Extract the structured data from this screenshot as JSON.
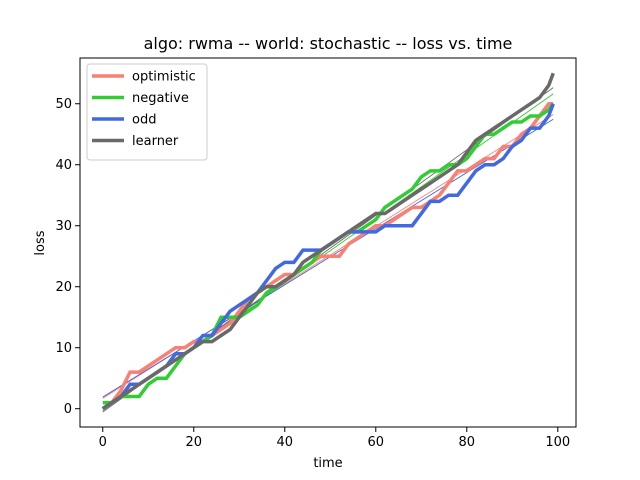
{
  "chart_data": {
    "type": "line",
    "title": "algo: rwma -- world: stochastic -- loss vs. time",
    "xlabel": "time",
    "ylabel": "loss",
    "xlim": [
      -5,
      104
    ],
    "ylim": [
      -3,
      57.5
    ],
    "xticks": [
      0,
      20,
      40,
      60,
      80,
      100
    ],
    "yticks": [
      0,
      10,
      20,
      30,
      40,
      50
    ],
    "grid": false,
    "legend_position": "top-left",
    "series": [
      {
        "name": "optimistic",
        "color": "#fa8072",
        "x": [
          0,
          2,
          4,
          6,
          8,
          10,
          12,
          14,
          16,
          18,
          20,
          22,
          24,
          26,
          28,
          30,
          32,
          34,
          36,
          38,
          40,
          42,
          44,
          46,
          48,
          50,
          52,
          54,
          56,
          58,
          60,
          62,
          64,
          66,
          68,
          70,
          72,
          74,
          76,
          78,
          80,
          82,
          84,
          86,
          88,
          90,
          92,
          94,
          96,
          98,
          99
        ],
        "values": [
          0,
          1,
          3,
          6,
          6,
          7,
          8,
          9,
          10,
          10,
          11,
          11,
          12,
          13,
          14,
          16,
          18,
          19,
          20,
          21,
          22,
          22,
          23,
          24,
          25,
          25,
          25,
          27,
          28,
          29,
          30,
          30,
          31,
          32,
          33,
          33,
          34,
          35,
          37,
          39,
          39,
          40,
          41,
          41,
          43,
          43,
          45,
          46,
          48,
          50,
          50
        ]
      },
      {
        "name": "negative",
        "color": "#32cd32",
        "x": [
          0,
          2,
          4,
          6,
          8,
          10,
          12,
          14,
          16,
          18,
          20,
          22,
          24,
          26,
          28,
          30,
          32,
          34,
          36,
          38,
          40,
          42,
          44,
          46,
          48,
          50,
          52,
          54,
          56,
          58,
          60,
          62,
          64,
          66,
          68,
          70,
          72,
          74,
          76,
          78,
          80,
          82,
          84,
          86,
          88,
          90,
          92,
          94,
          96,
          98,
          99
        ],
        "values": [
          1,
          1,
          2,
          2,
          2,
          4,
          5,
          5,
          7,
          9,
          10,
          11,
          12,
          15,
          15,
          15,
          16,
          17,
          19,
          20,
          21,
          22,
          23,
          24,
          26,
          27,
          28,
          29,
          29,
          30,
          31,
          33,
          34,
          35,
          36,
          38,
          39,
          39,
          40,
          40,
          41,
          43,
          45,
          45,
          46,
          47,
          47,
          48,
          48,
          49,
          50
        ]
      },
      {
        "name": "odd",
        "color": "#4169e1",
        "x": [
          0,
          2,
          4,
          6,
          8,
          10,
          12,
          14,
          16,
          18,
          20,
          22,
          24,
          26,
          28,
          30,
          32,
          34,
          36,
          38,
          40,
          42,
          44,
          46,
          48,
          50,
          52,
          54,
          56,
          58,
          60,
          62,
          64,
          66,
          68,
          70,
          72,
          74,
          76,
          78,
          80,
          82,
          84,
          86,
          88,
          90,
          92,
          94,
          96,
          98,
          99
        ],
        "values": [
          0,
          1,
          2,
          4,
          4,
          5,
          6,
          7,
          9,
          9,
          10,
          12,
          12,
          14,
          16,
          17,
          18,
          19,
          21,
          23,
          24,
          24,
          26,
          26,
          26,
          27,
          28,
          29,
          29,
          29,
          29,
          30,
          30,
          30,
          30,
          32,
          34,
          34,
          35,
          35,
          37,
          39,
          40,
          40,
          41,
          43,
          44,
          46,
          46,
          48,
          50
        ]
      },
      {
        "name": "learner",
        "color": "#696969",
        "x": [
          0,
          2,
          4,
          6,
          8,
          10,
          12,
          14,
          16,
          18,
          20,
          22,
          24,
          26,
          28,
          30,
          32,
          34,
          36,
          38,
          40,
          42,
          44,
          46,
          48,
          50,
          52,
          54,
          56,
          58,
          60,
          62,
          64,
          66,
          68,
          70,
          72,
          74,
          76,
          78,
          80,
          82,
          84,
          86,
          88,
          90,
          92,
          94,
          96,
          98,
          99
        ],
        "values": [
          0,
          1,
          2,
          3,
          4,
          5,
          6,
          7,
          8,
          9,
          10,
          11,
          11,
          12,
          13,
          15,
          17,
          19,
          20,
          20,
          21,
          22,
          24,
          25,
          26,
          27,
          28,
          29,
          30,
          31,
          32,
          32,
          33,
          34,
          35,
          36,
          37,
          38,
          39,
          40,
          42,
          44,
          45,
          46,
          47,
          48,
          49,
          50,
          51,
          53,
          55
        ]
      }
    ]
  }
}
